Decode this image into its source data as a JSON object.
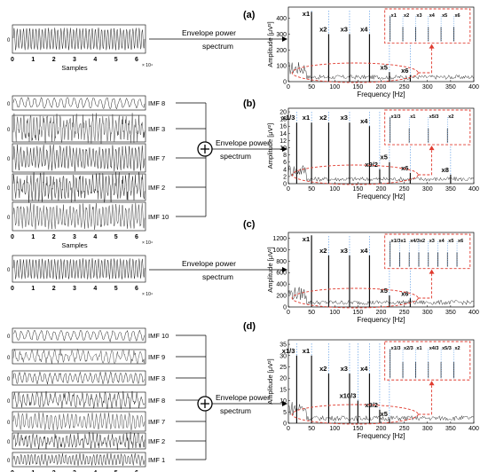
{
  "panels": [
    {
      "id": "a",
      "label": "(a)",
      "arrow_text": [
        "Envelope power",
        "spectrum"
      ],
      "left_axis": {
        "xlabel": "Samples",
        "xticks": [
          "0",
          "1",
          "2",
          "3",
          "4",
          "5",
          "6"
        ],
        "exp": "× 10⁴",
        "yzero": "0"
      },
      "imfs": [],
      "spectrum": {
        "ylabel": "Amplitude [μV²]",
        "xlabel": "Frequency [Hz]",
        "xticks": [
          "0",
          "50",
          "100",
          "150",
          "200",
          "250",
          "300",
          "350",
          "400"
        ],
        "xlim": [
          0,
          400
        ],
        "ylim": [
          0,
          470
        ],
        "yticks": [
          "0",
          "100",
          "200",
          "300",
          "400"
        ],
        "yvals": [
          0,
          100,
          200,
          300,
          400
        ],
        "peaks": [
          {
            "label": "x1",
            "freq": 50,
            "amp": 440
          },
          {
            "label": "x2",
            "freq": 87,
            "amp": 300
          },
          {
            "label": "x3",
            "freq": 132,
            "amp": 300
          },
          {
            "label": "x4",
            "freq": 175,
            "amp": 300
          },
          {
            "label": "x5",
            "freq": 218,
            "amp": 60
          },
          {
            "label": "x6",
            "freq": 263,
            "amp": 40
          }
        ],
        "inset_labels": [
          "x1",
          "x2",
          "x3",
          "x4",
          "x5",
          "x6"
        ]
      }
    },
    {
      "id": "b",
      "label": "(b)",
      "arrow_text": [
        "Envelope power",
        "spectrum"
      ],
      "left_axis": {
        "xlabel": "Samples",
        "xticks": [
          "0",
          "1",
          "2",
          "3",
          "4",
          "5",
          "6"
        ],
        "exp": "× 10⁴",
        "yzero": "0"
      },
      "imfs": [
        "IMF 8",
        "IMF 3",
        "IMF 7",
        "IMF 2",
        "IMF 10"
      ],
      "spectrum": {
        "ylabel": "Amplitude [μV²]",
        "xlabel": "Frequency [Hz]",
        "xticks": [
          "0",
          "50",
          "100",
          "150",
          "200",
          "250",
          "300",
          "350",
          "400"
        ],
        "xlim": [
          0,
          400
        ],
        "ylim": [
          0,
          21
        ],
        "yticks": [
          "0",
          "2",
          "4",
          "6",
          "8",
          "10",
          "12",
          "14",
          "16",
          "18",
          "20"
        ],
        "yvals": [
          0,
          2,
          4,
          6,
          8,
          10,
          12,
          14,
          16,
          18,
          20
        ],
        "peaks": [
          {
            "label": "x1/3",
            "freq": 18,
            "amp": 17
          },
          {
            "label": "x1",
            "freq": 50,
            "amp": 17
          },
          {
            "label": "x2",
            "freq": 87,
            "amp": 17
          },
          {
            "label": "x3",
            "freq": 132,
            "amp": 17
          },
          {
            "label": "x4",
            "freq": 175,
            "amp": 16
          },
          {
            "label": "x5",
            "freq": 218,
            "amp": 6
          },
          {
            "label": "x9/2",
            "freq": 197,
            "amp": 4
          },
          {
            "label": "x6",
            "freq": 263,
            "amp": 3
          },
          {
            "label": "x8",
            "freq": 350,
            "amp": 2.5
          }
        ],
        "inset_labels": [
          "x1/3",
          "x1",
          "x5/3",
          "x2"
        ]
      }
    },
    {
      "id": "c",
      "label": "(c)",
      "arrow_text": [
        "Envelope power",
        "spectrum"
      ],
      "left_axis": {
        "xlabel": "",
        "xticks": [
          "0",
          "1",
          "2",
          "3",
          "4",
          "5",
          "6"
        ],
        "exp": "× 10⁴",
        "yzero": "0"
      },
      "imfs": [],
      "spectrum": {
        "ylabel": "Amplitude [μV²]",
        "xlabel": "Frequency [Hz]",
        "xticks": [
          "0",
          "50",
          "100",
          "150",
          "200",
          "250",
          "300",
          "350",
          "400"
        ],
        "xlim": [
          0,
          400
        ],
        "ylim": [
          0,
          1300
        ],
        "yticks": [
          "0",
          "200",
          "400",
          "600",
          "800",
          "1000",
          "1200"
        ],
        "yvals": [
          0,
          200,
          400,
          600,
          800,
          1000,
          1200
        ],
        "peaks": [
          {
            "label": "x1",
            "freq": 50,
            "amp": 1250
          },
          {
            "label": "x2",
            "freq": 87,
            "amp": 900
          },
          {
            "label": "x3",
            "freq": 132,
            "amp": 900
          },
          {
            "label": "x4",
            "freq": 175,
            "amp": 900
          },
          {
            "label": "x5",
            "freq": 218,
            "amp": 200
          },
          {
            "label": "x6",
            "freq": 263,
            "amp": 150
          }
        ],
        "inset_labels": [
          "x1/3",
          "x1",
          "x4/3",
          "x2",
          "x3",
          "x4",
          "x5",
          "x6"
        ]
      }
    },
    {
      "id": "d",
      "label": "(d)",
      "arrow_text": [
        "Envelope power",
        "spectrum"
      ],
      "left_axis": {
        "xlabel": "Samples",
        "xticks": [
          "0",
          "1",
          "2",
          "3",
          "4",
          "5",
          "6"
        ],
        "exp": "× 10⁴",
        "yzero": "0"
      },
      "imfs": [
        "IMF 10",
        "IMF 9",
        "IMF 3",
        "IMF 8",
        "IMF 7",
        "IMF 2",
        "IMF 1"
      ],
      "spectrum": {
        "ylabel": "Amplitude [μV²]",
        "xlabel": "Frequency [Hz]",
        "xticks": [
          "0",
          "50",
          "100",
          "150",
          "200",
          "250",
          "300",
          "350",
          "400"
        ],
        "xlim": [
          0,
          400
        ],
        "ylim": [
          0,
          37
        ],
        "yticks": [
          "0",
          "5",
          "10",
          "15",
          "20",
          "25",
          "30",
          "35"
        ],
        "yvals": [
          0,
          5,
          10,
          15,
          20,
          25,
          30,
          35
        ],
        "peaks": [
          {
            "label": "x1/3",
            "freq": 18,
            "amp": 30
          },
          {
            "label": "x1",
            "freq": 50,
            "amp": 30
          },
          {
            "label": "x2",
            "freq": 87,
            "amp": 22
          },
          {
            "label": "x3",
            "freq": 132,
            "amp": 22
          },
          {
            "label": "x4",
            "freq": 175,
            "amp": 22
          },
          {
            "label": "x10/3",
            "freq": 150,
            "amp": 10
          },
          {
            "label": "x9/2",
            "freq": 197,
            "amp": 6
          },
          {
            "label": "x5",
            "freq": 218,
            "amp": 2
          }
        ],
        "inset_labels": [
          "x1/3",
          "x2/3",
          "x1",
          "x4/3",
          "x5/3",
          "x2"
        ]
      }
    }
  ]
}
